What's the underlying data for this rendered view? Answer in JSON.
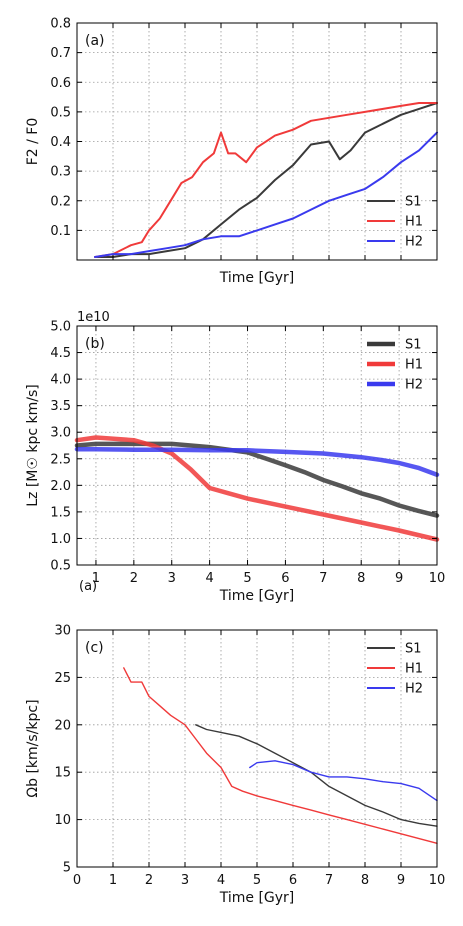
{
  "colors": {
    "S1": "#3a3a3a",
    "H1": "#f03a3a",
    "H2": "#3a3aee",
    "grid": "#9a9a9a"
  },
  "chart_data": [
    {
      "panel": "(a)",
      "type": "line",
      "xlabel": "Time [Gyr]",
      "ylabel": "F2 / F0",
      "xlim": [
        0,
        10
      ],
      "ylim": [
        0,
        0.8
      ],
      "xticks": [],
      "yticks": [
        {
          "v": 0.1,
          "label": "0.1"
        },
        {
          "v": 0.2,
          "label": "0.2"
        },
        {
          "v": 0.3,
          "label": "0.3"
        },
        {
          "v": 0.4,
          "label": "0.4"
        },
        {
          "v": 0.5,
          "label": "0.5"
        },
        {
          "v": 0.6,
          "label": "0.6"
        },
        {
          "v": 0.7,
          "label": "0.7"
        },
        {
          "v": 0.8,
          "label": "0.8"
        }
      ],
      "grid": true,
      "legend": "lower-right",
      "series": [
        {
          "name": "S1",
          "x": [
            0.5,
            1.0,
            1.5,
            2.0,
            2.5,
            3.0,
            3.5,
            4.0,
            4.5,
            5.0,
            5.5,
            6.0,
            6.5,
            7.0,
            7.3,
            7.6,
            8.0,
            8.5,
            9.0,
            9.5,
            10.0
          ],
          "y": [
            0.01,
            0.01,
            0.02,
            0.02,
            0.03,
            0.04,
            0.07,
            0.12,
            0.17,
            0.21,
            0.27,
            0.32,
            0.39,
            0.4,
            0.34,
            0.37,
            0.43,
            0.46,
            0.49,
            0.51,
            0.53
          ]
        },
        {
          "name": "H1",
          "x": [
            0.5,
            1.0,
            1.5,
            1.8,
            2.0,
            2.3,
            2.6,
            2.9,
            3.2,
            3.5,
            3.8,
            4.0,
            4.2,
            4.4,
            4.7,
            5.0,
            5.5,
            6.0,
            6.5,
            7.0,
            7.5,
            8.0,
            8.5,
            9.0,
            9.5,
            10.0
          ],
          "y": [
            0.01,
            0.02,
            0.05,
            0.06,
            0.1,
            0.14,
            0.2,
            0.26,
            0.28,
            0.33,
            0.36,
            0.43,
            0.36,
            0.36,
            0.33,
            0.38,
            0.42,
            0.44,
            0.47,
            0.48,
            0.49,
            0.5,
            0.51,
            0.52,
            0.53,
            0.53
          ]
        },
        {
          "name": "H2",
          "x": [
            0.5,
            1.0,
            1.5,
            2.0,
            2.5,
            3.0,
            3.5,
            4.0,
            4.5,
            5.0,
            5.5,
            6.0,
            6.5,
            7.0,
            7.5,
            8.0,
            8.5,
            9.0,
            9.5,
            10.0
          ],
          "y": [
            0.01,
            0.02,
            0.02,
            0.03,
            0.04,
            0.05,
            0.07,
            0.08,
            0.08,
            0.1,
            0.12,
            0.14,
            0.17,
            0.2,
            0.22,
            0.24,
            0.28,
            0.33,
            0.37,
            0.43
          ]
        }
      ]
    },
    {
      "panel": "(b)",
      "type": "line",
      "xlabel": "Time [Gyr]",
      "ylabel": "Lz [M☉ kpc km/s]",
      "offset": "1e10",
      "extra_label": "(a)",
      "xlim": [
        0.5,
        10
      ],
      "ylim": [
        0.5,
        5.0
      ],
      "xticks": [
        {
          "v": 1,
          "label": "1"
        },
        {
          "v": 2,
          "label": "2"
        },
        {
          "v": 3,
          "label": "3"
        },
        {
          "v": 4,
          "label": "4"
        },
        {
          "v": 5,
          "label": "5"
        },
        {
          "v": 6,
          "label": "6"
        },
        {
          "v": 7,
          "label": "7"
        },
        {
          "v": 8,
          "label": "8"
        },
        {
          "v": 9,
          "label": "9"
        },
        {
          "v": 10,
          "label": "10"
        }
      ],
      "yticks": [
        {
          "v": 0.5,
          "label": "0.5"
        },
        {
          "v": 1.0,
          "label": "1.0"
        },
        {
          "v": 1.5,
          "label": "1.5"
        },
        {
          "v": 2.0,
          "label": "2.0"
        },
        {
          "v": 2.5,
          "label": "2.5"
        },
        {
          "v": 3.0,
          "label": "3.0"
        },
        {
          "v": 3.5,
          "label": "3.5"
        },
        {
          "v": 4.0,
          "label": "4.0"
        },
        {
          "v": 4.5,
          "label": "4.5"
        },
        {
          "v": 5.0,
          "label": "5.0"
        }
      ],
      "grid": true,
      "legend": "top-right",
      "series": [
        {
          "name": "S1",
          "x": [
            0.5,
            1,
            2,
            3,
            4,
            5,
            5.5,
            6,
            6.5,
            7,
            7.5,
            8,
            8.5,
            9,
            9.5,
            10
          ],
          "y": [
            2.75,
            2.78,
            2.78,
            2.78,
            2.72,
            2.62,
            2.5,
            2.38,
            2.25,
            2.1,
            1.98,
            1.85,
            1.75,
            1.62,
            1.52,
            1.43
          ]
        },
        {
          "name": "H1",
          "x": [
            0.5,
            1,
            2,
            2.5,
            3,
            3.5,
            4,
            4.5,
            5,
            6,
            7,
            8,
            9,
            10
          ],
          "y": [
            2.85,
            2.9,
            2.85,
            2.75,
            2.6,
            2.3,
            1.95,
            1.85,
            1.75,
            1.6,
            1.45,
            1.3,
            1.15,
            0.98
          ]
        },
        {
          "name": "H2",
          "x": [
            0.5,
            1,
            2,
            3,
            4,
            5,
            6,
            7,
            8,
            8.5,
            9,
            9.5,
            10
          ],
          "y": [
            2.68,
            2.68,
            2.67,
            2.67,
            2.66,
            2.66,
            2.63,
            2.6,
            2.53,
            2.48,
            2.42,
            2.33,
            2.2
          ]
        }
      ]
    },
    {
      "panel": "(c)",
      "type": "line",
      "xlabel": "Time [Gyr]",
      "ylabel": "Ωb [km/s/kpc]",
      "xlim": [
        0,
        10
      ],
      "ylim": [
        5,
        30
      ],
      "xticks": [
        {
          "v": 0,
          "label": "0"
        },
        {
          "v": 1,
          "label": "1"
        },
        {
          "v": 2,
          "label": "2"
        },
        {
          "v": 3,
          "label": "3"
        },
        {
          "v": 4,
          "label": "4"
        },
        {
          "v": 5,
          "label": "5"
        },
        {
          "v": 6,
          "label": "6"
        },
        {
          "v": 7,
          "label": "7"
        },
        {
          "v": 8,
          "label": "8"
        },
        {
          "v": 9,
          "label": "9"
        },
        {
          "v": 10,
          "label": "10"
        }
      ],
      "yticks": [
        {
          "v": 5,
          "label": "5"
        },
        {
          "v": 10,
          "label": "10"
        },
        {
          "v": 15,
          "label": "15"
        },
        {
          "v": 20,
          "label": "20"
        },
        {
          "v": 25,
          "label": "25"
        },
        {
          "v": 30,
          "label": "30"
        }
      ],
      "grid": true,
      "legend": "top-right",
      "series": [
        {
          "name": "S1",
          "x": [
            3.3,
            3.6,
            4.0,
            4.5,
            5.0,
            5.5,
            6.0,
            6.5,
            7.0,
            7.5,
            8.0,
            8.5,
            9.0,
            9.5,
            10.0
          ],
          "y": [
            20.0,
            19.5,
            19.2,
            18.8,
            18.0,
            17.0,
            16.0,
            15.0,
            13.5,
            12.5,
            11.5,
            10.8,
            10.0,
            9.6,
            9.3
          ]
        },
        {
          "name": "H1",
          "x": [
            1.3,
            1.5,
            1.8,
            2.0,
            2.3,
            2.6,
            3.0,
            3.3,
            3.6,
            4.0,
            4.3,
            4.6,
            5.0,
            5.5,
            6.0,
            6.5,
            7.0,
            7.5,
            8.0,
            8.5,
            9.0,
            9.5,
            10.0
          ],
          "y": [
            26.0,
            24.5,
            24.5,
            23.0,
            22.0,
            21.0,
            20.0,
            18.5,
            17.0,
            15.5,
            13.5,
            13.0,
            12.5,
            12.0,
            11.5,
            11.0,
            10.5,
            10.0,
            9.5,
            9.0,
            8.5,
            8.0,
            7.5
          ]
        },
        {
          "name": "H2",
          "x": [
            4.8,
            5.0,
            5.5,
            6.0,
            6.5,
            7.0,
            7.5,
            8.0,
            8.5,
            9.0,
            9.5,
            10.0
          ],
          "y": [
            15.5,
            16.0,
            16.2,
            15.8,
            15.0,
            14.5,
            14.5,
            14.3,
            14.0,
            13.8,
            13.3,
            12.0
          ]
        }
      ]
    }
  ]
}
